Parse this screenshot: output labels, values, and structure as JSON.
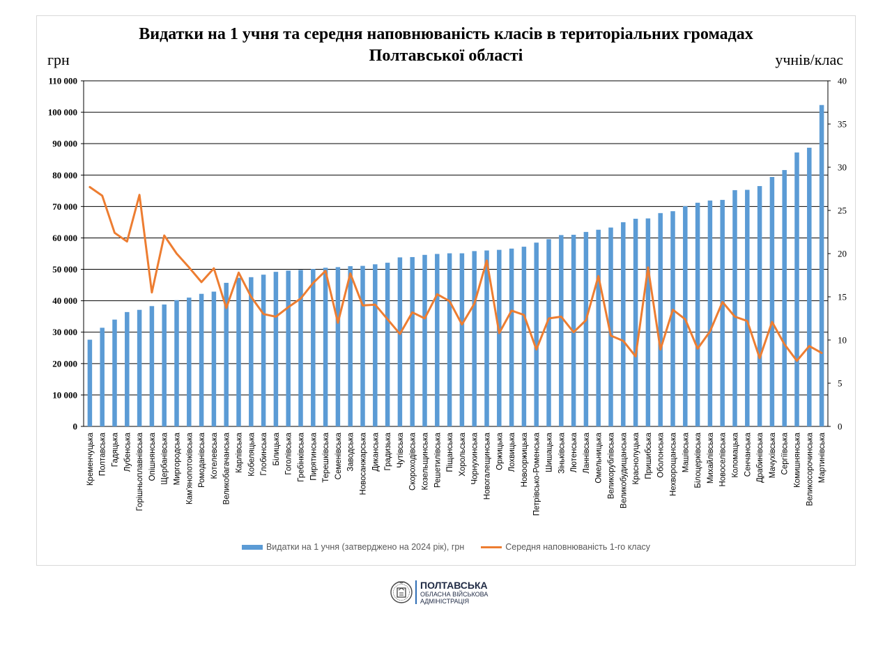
{
  "chart_data": {
    "type": "bar",
    "title": "Видатки на 1 учня та середня наповнюваність класів в територіальних громадах Полтавської області",
    "ylabel": "грн",
    "y2label": "учнів/клас",
    "ylim": [
      0,
      110000
    ],
    "y2lim": [
      0,
      40
    ],
    "yticks": [
      "110 000",
      "100 000",
      "90 000",
      "80 000",
      "70 000",
      "60 000",
      "50 000",
      "40 000",
      "30 000",
      "20 000",
      "10 000",
      "0"
    ],
    "y2ticks": [
      "40",
      "35",
      "30",
      "25",
      "20",
      "15",
      "10",
      "5",
      "0"
    ],
    "grid": "horizontal",
    "legend_position": "bottom",
    "categories": [
      "Кременчуцька",
      "Полтавська",
      "Гадяцька",
      "Лубенська",
      "Горішньоплавнівська",
      "Опішнянська",
      "Щербанівська",
      "Миргородська",
      "Кам'янопотоківська",
      "Ромоданівська",
      "Котелевська",
      "Великобагачанська",
      "Карлівська",
      "Кобеляцька",
      "Глобинська",
      "Білицька",
      "Гоголівська",
      "Гребінківська",
      "Пирятинська",
      "Терешківська",
      "Семенівська",
      "Заводська",
      "Новосанжарська",
      "Диканська",
      "Градизька",
      "Чутівська",
      "Скороходівська",
      "Козельщинська",
      "Решетилівська",
      "Піщанська",
      "Хорольська",
      "Чорнухинська",
      "Новогалещинська",
      "Оржицька",
      "Лохвицька",
      "Новооржицька",
      "Петрівсько-Роменська",
      "Шишацька",
      "Зіньківська",
      "Лютенська",
      "Ланнівська",
      "Омельницька",
      "Великорублівська",
      "Великобудищанська",
      "Краснолуцька",
      "Пришибська",
      "Оболонська",
      "Нехворощанська",
      "Машівська",
      "Білоцерківська",
      "Михайлівська",
      "Новоселівська",
      "Коломацька",
      "Сенчанська",
      "Драбинівська",
      "Мачухівська",
      "Сергіївська",
      "Комишнянська",
      "Великосорочинська",
      "Мартинівська"
    ],
    "series": [
      {
        "name": "Видатки на 1 учня (затверджено на 2024 рік), грн",
        "type": "bar",
        "axis": "left",
        "color": "#5b9bd5",
        "values": [
          27600,
          31400,
          34000,
          36400,
          37100,
          38300,
          38800,
          40200,
          41000,
          42200,
          42900,
          45700,
          47300,
          47500,
          48300,
          49200,
          49600,
          49800,
          50100,
          50500,
          50700,
          51000,
          51100,
          51600,
          52100,
          53800,
          53900,
          54600,
          54900,
          55100,
          55100,
          55800,
          56000,
          56200,
          56600,
          57200,
          58500,
          59600,
          60900,
          61000,
          61900,
          62600,
          63300,
          65000,
          66100,
          66200,
          67900,
          68500,
          70100,
          71200,
          71900,
          72100,
          75200,
          75300,
          76500,
          79400,
          81600,
          87200,
          88700,
          102300
        ]
      },
      {
        "name": "Середня наповнюваність 1-го класу",
        "type": "line",
        "axis": "right",
        "color": "#ed7d31",
        "values": [
          27.7,
          26.7,
          22.4,
          21.4,
          26.8,
          15.5,
          22.1,
          20.0,
          18.4,
          16.7,
          18.3,
          13.7,
          17.8,
          15.0,
          13.0,
          12.7,
          13.8,
          14.8,
          16.6,
          18.0,
          12.0,
          17.7,
          14.0,
          14.1,
          12.4,
          10.7,
          13.2,
          12.5,
          15.3,
          14.5,
          11.8,
          14.2,
          19.2,
          10.8,
          13.4,
          12.9,
          8.9,
          12.5,
          12.7,
          10.9,
          12.3,
          17.4,
          10.5,
          9.9,
          8.1,
          18.4,
          8.9,
          13.5,
          12.4,
          9.0,
          11.0,
          14.4,
          12.7,
          12.2,
          7.9,
          12.1,
          9.5,
          7.6,
          9.3,
          8.5
        ]
      }
    ]
  },
  "logo": {
    "name": "ПОЛТАВСЬКА",
    "line2": "ОБЛАСНА ВІЙСЬКОВА",
    "line3": "АДМІНІСТРАЦІЯ",
    "seal_icon": "poltava-seal-icon",
    "accent": "#2e6db4"
  }
}
